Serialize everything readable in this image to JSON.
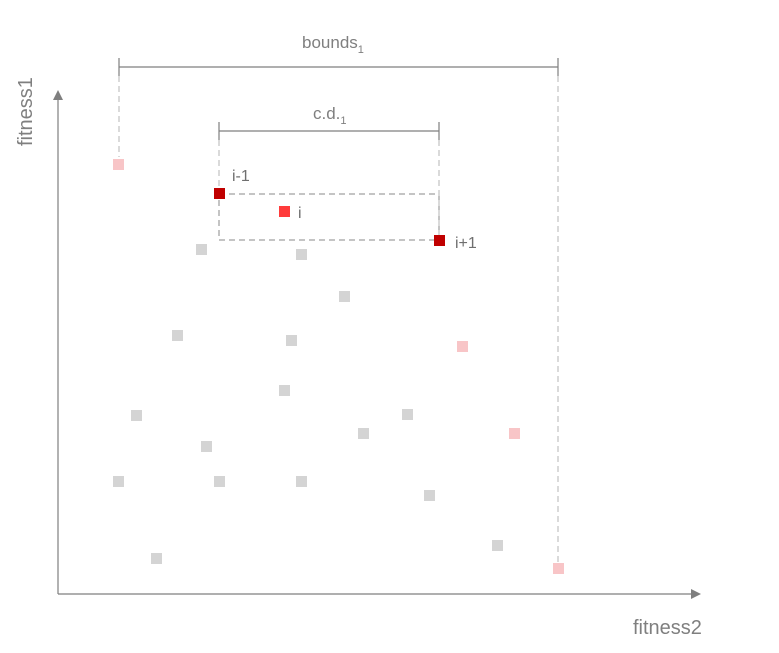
{
  "axes": {
    "y_label": "fitness1",
    "x_label": "fitness2"
  },
  "bounds": {
    "label_main": "bounds",
    "label_sub": "1"
  },
  "crowding": {
    "label_main": "c.d.",
    "label_sub": "1"
  },
  "point_labels": {
    "prev": "i-1",
    "current": "i",
    "next": "i+1"
  },
  "colors": {
    "axis": "#7f7f7f",
    "dashed": "#b5b5b5",
    "gray_point": "#d4d4d4",
    "extreme_point": "#f8c5c7",
    "neighbor_point": "#c00000",
    "current_point": "#ff3b3b"
  }
}
